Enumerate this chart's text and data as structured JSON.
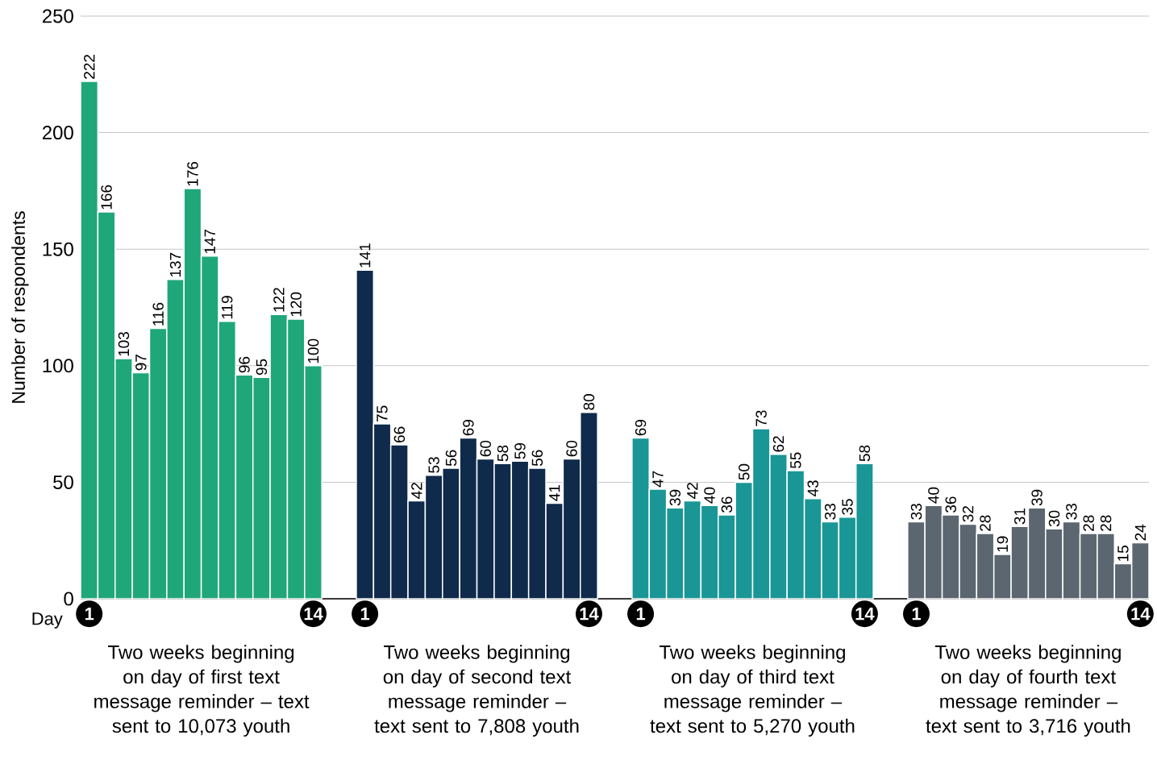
{
  "chart_data": {
    "type": "bar",
    "ylabel": "Number of respondents",
    "xlabel": "Day",
    "categories": [
      "1",
      null,
      null,
      null,
      null,
      null,
      null,
      null,
      null,
      null,
      null,
      null,
      null,
      "14",
      null,
      null,
      "1",
      null,
      null,
      null,
      null,
      null,
      null,
      null,
      null,
      null,
      null,
      null,
      null,
      "14",
      null,
      null,
      "1",
      null,
      null,
      null,
      null,
      null,
      null,
      null,
      null,
      null,
      null,
      null,
      null,
      "14",
      null,
      null,
      "1",
      null,
      null,
      null,
      null,
      null,
      null,
      null,
      null,
      null,
      null,
      null,
      null,
      "14"
    ],
    "series": [
      {
        "name": "Two weeks beginning on day of first text message reminder – text sent to 10,073 youth",
        "color": "#1fa77a",
        "values": [
          222,
          166,
          103,
          97,
          116,
          137,
          176,
          147,
          119,
          96,
          95,
          122,
          120,
          100,
          null,
          null,
          null,
          null,
          null,
          null,
          null,
          null,
          null,
          null,
          null,
          null,
          null,
          null,
          null,
          null,
          null,
          null,
          null,
          null,
          null,
          null,
          null,
          null,
          null,
          null,
          null,
          null,
          null,
          null,
          null,
          null,
          null,
          null,
          null,
          null,
          null,
          null,
          null,
          null,
          null,
          null,
          null,
          null,
          null,
          null,
          null,
          null
        ]
      },
      {
        "name": "Two weeks beginning on day of second text message reminder – text sent to 7,808 youth",
        "color": "#0f2a4a",
        "values": [
          null,
          null,
          null,
          null,
          null,
          null,
          null,
          null,
          null,
          null,
          null,
          null,
          null,
          null,
          null,
          null,
          141,
          75,
          66,
          42,
          53,
          56,
          69,
          60,
          58,
          59,
          56,
          41,
          60,
          80,
          null,
          null,
          null,
          null,
          null,
          null,
          null,
          null,
          null,
          null,
          null,
          null,
          null,
          null,
          null,
          null,
          null,
          null,
          null,
          null,
          null,
          null,
          null,
          null,
          null,
          null,
          null,
          null,
          null,
          null,
          null,
          null
        ]
      },
      {
        "name": "Two weeks beginning on day of third text message reminder – text sent to 5,270 youth",
        "color": "#1a9696",
        "values": [
          null,
          null,
          null,
          null,
          null,
          null,
          null,
          null,
          null,
          null,
          null,
          null,
          null,
          null,
          null,
          null,
          null,
          null,
          null,
          null,
          null,
          null,
          null,
          null,
          null,
          null,
          null,
          null,
          null,
          null,
          null,
          null,
          69,
          47,
          39,
          42,
          40,
          36,
          50,
          73,
          62,
          55,
          43,
          33,
          35,
          58,
          null,
          null,
          null,
          null,
          null,
          null,
          null,
          null,
          null,
          null,
          null,
          null,
          null,
          null,
          null,
          null
        ]
      },
      {
        "name": "Two weeks beginning on day of fourth text message reminder – text sent to 3,716 youth",
        "color": "#5b6670",
        "values": [
          null,
          null,
          null,
          null,
          null,
          null,
          null,
          null,
          null,
          null,
          null,
          null,
          null,
          null,
          null,
          null,
          null,
          null,
          null,
          null,
          null,
          null,
          null,
          null,
          null,
          null,
          null,
          null,
          null,
          null,
          null,
          null,
          null,
          null,
          null,
          null,
          null,
          null,
          null,
          null,
          null,
          null,
          null,
          null,
          null,
          null,
          null,
          null,
          33,
          40,
          36,
          32,
          28,
          19,
          31,
          39,
          30,
          33,
          28,
          28,
          15,
          24
        ]
      }
    ],
    "ylim": [
      0,
      250
    ],
    "yticks": [
      0,
      50,
      100,
      150,
      200,
      250
    ],
    "grid": "y",
    "data_labels": true
  }
}
